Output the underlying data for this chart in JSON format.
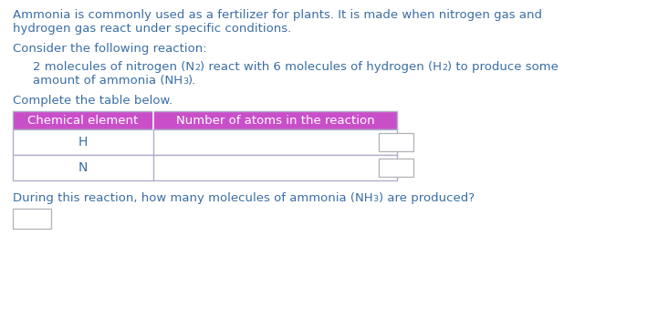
{
  "bg_color": "#ffffff",
  "text_color_main": "#3a6ea5",
  "table_header_bg": "#c94fc9",
  "table_border_color": "#b0b0c8",
  "para1_line1": "Ammonia is commonly used as a fertilizer for plants. It is made when nitrogen gas and",
  "para1_line2": "hydrogen gas react under specific conditions.",
  "para2": "Consider the following reaction:",
  "para3_line1_seg1": "2 molecules of nitrogen (N",
  "para3_line1_sub1": "2",
  "para3_line1_seg2": ") react with 6 molecules of hydrogen (H",
  "para3_line1_sub2": "2",
  "para3_line1_seg3": ") to produce some",
  "para3_line2_seg1": "amount of ammonia (NH",
  "para3_line2_sub": "3",
  "para3_line2_seg2": ").",
  "para4": "Complete the table below.",
  "table_col1_header": "Chemical element",
  "table_col2_header": "Number of atoms in the reaction",
  "table_row1": "H",
  "table_row2": "N",
  "q_seg1": "During this reaction, how many molecules of ammonia (NH",
  "q_sub": "3",
  "q_seg2": ") are produced?",
  "font_size_body": 9.5,
  "font_size_table": 9.5,
  "font_size_row": 10
}
